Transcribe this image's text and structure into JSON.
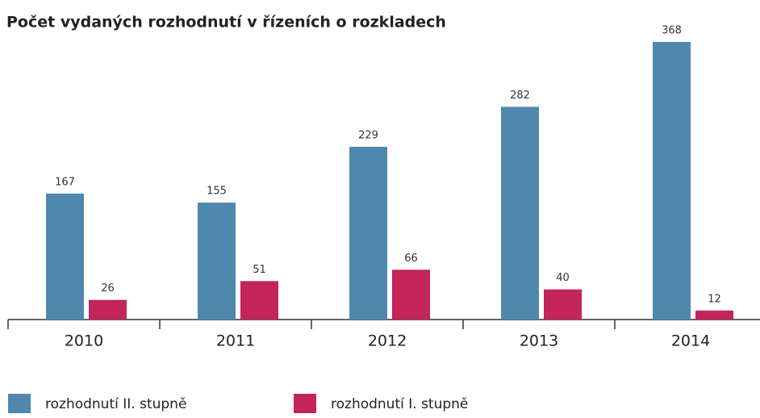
{
  "chart_data": {
    "type": "bar",
    "title": "Počet vydaných rozhodnutí v řízeních o rozkladech",
    "categories": [
      "2010",
      "2011",
      "2012",
      "2013",
      "2014"
    ],
    "series": [
      {
        "name": "rozhodnutí II. stupně",
        "color": "#4f87ad",
        "values": [
          167,
          155,
          229,
          282,
          368
        ]
      },
      {
        "name": "rozhodnutí I. stupně",
        "color": "#c3245a",
        "values": [
          26,
          51,
          66,
          40,
          12
        ]
      }
    ]
  }
}
